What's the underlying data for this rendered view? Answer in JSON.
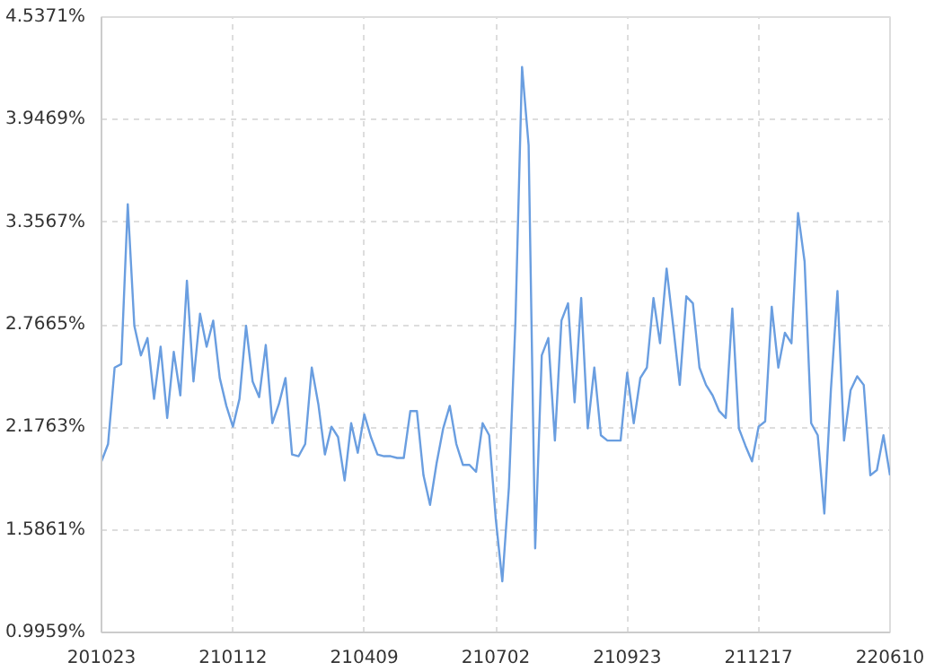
{
  "chart_data": {
    "type": "line",
    "color": "#6a9ee0",
    "line_style": "solid",
    "grid": true,
    "ylim": [
      0.9959,
      4.5371
    ],
    "yticks": [
      {
        "value": 0.9959,
        "label": "0.9959%"
      },
      {
        "value": 1.5861,
        "label": "1.5861%"
      },
      {
        "value": 2.1763,
        "label": "2.1763%"
      },
      {
        "value": 2.7665,
        "label": "2.7665%"
      },
      {
        "value": 3.3567,
        "label": "3.3567%"
      },
      {
        "value": 3.9469,
        "label": "3.9469%"
      },
      {
        "value": 4.5371,
        "label": "4.5371%"
      }
    ],
    "categories": [
      "201023",
      null,
      null,
      null,
      null,
      null,
      null,
      null,
      null,
      null,
      null,
      null,
      null,
      null,
      null,
      null,
      null,
      null,
      null,
      null,
      "210112",
      null,
      null,
      null,
      null,
      null,
      null,
      null,
      null,
      null,
      null,
      null,
      null,
      null,
      null,
      null,
      null,
      null,
      null,
      null,
      "210409",
      null,
      null,
      null,
      null,
      null,
      null,
      null,
      null,
      null,
      null,
      null,
      null,
      null,
      null,
      null,
      null,
      null,
      null,
      null,
      "210702",
      null,
      null,
      null,
      null,
      null,
      null,
      null,
      null,
      null,
      null,
      null,
      null,
      null,
      null,
      null,
      null,
      null,
      null,
      null,
      "210923",
      null,
      null,
      null,
      null,
      null,
      null,
      null,
      null,
      null,
      null,
      null,
      null,
      null,
      null,
      null,
      null,
      null,
      null,
      null,
      "211217",
      null,
      null,
      null,
      null,
      null,
      null,
      null,
      null,
      null,
      null,
      null,
      null,
      null,
      null,
      null,
      null,
      null,
      null,
      null,
      "220610"
    ],
    "values": [
      1.98,
      2.08,
      2.52,
      2.54,
      3.46,
      2.76,
      2.59,
      2.69,
      2.34,
      2.64,
      2.23,
      2.61,
      2.36,
      3.02,
      2.44,
      2.83,
      2.64,
      2.79,
      2.46,
      2.3,
      2.18,
      2.34,
      2.76,
      2.44,
      2.35,
      2.65,
      2.2,
      2.31,
      2.46,
      2.02,
      2.01,
      2.08,
      2.52,
      2.31,
      2.02,
      2.18,
      2.12,
      1.87,
      2.2,
      2.03,
      2.25,
      2.12,
      2.02,
      2.01,
      2.01,
      2.0,
      2.0,
      2.27,
      2.27,
      1.9,
      1.73,
      1.97,
      2.17,
      2.3,
      2.08,
      1.96,
      1.96,
      1.92,
      2.2,
      2.13,
      1.65,
      1.29,
      1.83,
      2.79,
      4.25,
      3.8,
      1.48,
      2.59,
      2.69,
      2.1,
      2.79,
      2.89,
      2.32,
      2.92,
      2.17,
      2.52,
      2.13,
      2.1,
      2.1,
      2.1,
      2.49,
      2.2,
      2.46,
      2.52,
      2.92,
      2.66,
      3.09,
      2.76,
      2.42,
      2.93,
      2.89,
      2.52,
      2.42,
      2.36,
      2.27,
      2.23,
      2.86,
      2.17,
      2.07,
      1.98,
      2.18,
      2.21,
      2.87,
      2.52,
      2.72,
      2.66,
      3.41,
      3.13,
      2.2,
      2.13,
      1.68,
      2.39,
      2.96,
      2.1,
      2.39,
      2.47,
      2.42,
      1.9,
      1.93,
      2.13,
      1.9
    ]
  }
}
